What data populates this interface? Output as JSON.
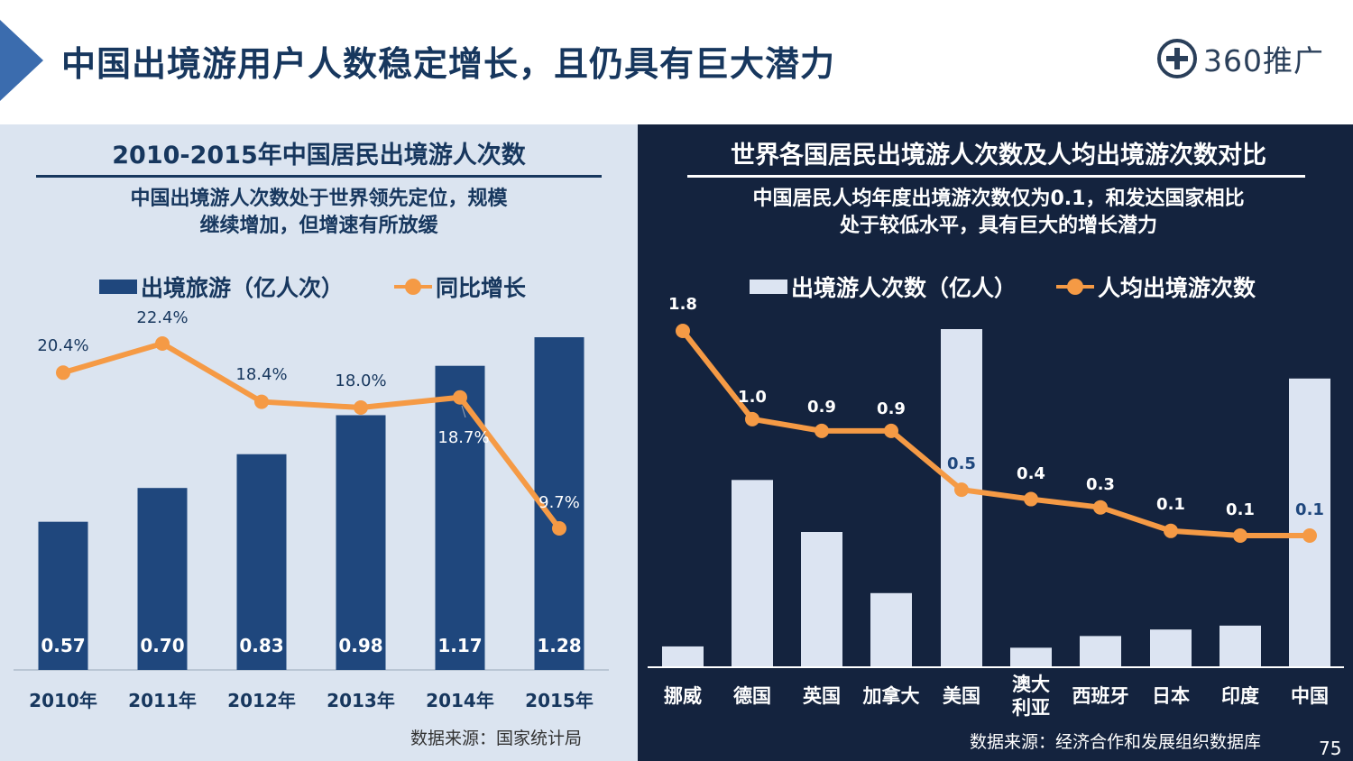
{
  "header": {
    "title": "中国出境游用户人数稳定增长，且仍具有巨大潜力",
    "logo_text": "360推广",
    "page_number": "75"
  },
  "colors": {
    "bar_dark": "#1f477d",
    "bar_light": "#dce4f2",
    "line_orange": "#f59a45",
    "title_blue": "#17375e"
  },
  "left_panel": {
    "title": "2010-2015年中国居民出境游人次数",
    "subtitle_line1": "中国出境游人次数处于世界领先定位，规模",
    "subtitle_line2": "继续增加，但增速有所放缓",
    "legend_bar": "出境旅游（亿人次）",
    "legend_line": "同比增长",
    "source": "数据来源：国家统计局"
  },
  "right_panel": {
    "title": "世界各国居民出境游人次数及人均出境游次数对比",
    "subtitle_line1": "中国居民人均年度出境游次数仅为0.1，和发达国家相比",
    "subtitle_line2": "处于较低水平，具有巨大的增长潜力",
    "legend_bar": "出境游人次数（亿人）",
    "legend_line": "人均出境游次数",
    "source": "数据来源：经济合作和发展组织数据库"
  },
  "chart_data": [
    {
      "type": "bar",
      "title": "2010-2015年中国居民出境游人次数",
      "categories": [
        "2010年",
        "2011年",
        "2012年",
        "2013年",
        "2014年",
        "2015年"
      ],
      "series": [
        {
          "name": "出境旅游（亿人次）",
          "type": "bar",
          "values": [
            0.57,
            0.7,
            0.83,
            0.98,
            1.17,
            1.28
          ],
          "labels": [
            "0.57",
            "0.70",
            "0.83",
            "0.98",
            "1.17",
            "1.28"
          ]
        },
        {
          "name": "同比增长",
          "type": "line",
          "values": [
            20.4,
            22.4,
            18.4,
            18.0,
            18.7,
            9.7
          ],
          "labels": [
            "20.4%",
            "22.4%",
            "18.4%",
            "18.0%",
            "18.7%",
            "9.7%"
          ]
        }
      ],
      "bar_axis_range": [
        0,
        1.28
      ],
      "line_axis_range": [
        9.7,
        22.4
      ]
    },
    {
      "type": "bar",
      "title": "世界各国居民出境游人次数及人均出境游次数对比",
      "categories": [
        "挪威",
        "德国",
        "英国",
        "加拿大",
        "美国",
        "澳大利亚",
        "西班牙",
        "日本",
        "印度",
        "中国"
      ],
      "category_lines": [
        [
          "挪威"
        ],
        [
          "德国"
        ],
        [
          "英国"
        ],
        [
          "加拿大"
        ],
        [
          "美国"
        ],
        [
          "澳大",
          "利亚"
        ],
        [
          "西班牙"
        ],
        [
          "日本"
        ],
        [
          "印度"
        ],
        [
          "中国"
        ]
      ],
      "series": [
        {
          "name": "出境游人次数（亿人）",
          "type": "bar",
          "values": [
            0.08,
            0.72,
            0.52,
            0.285,
            1.3,
            0.075,
            0.12,
            0.145,
            0.16,
            1.11
          ]
        },
        {
          "name": "人均出境游次数",
          "type": "line",
          "values": [
            1.8,
            1.0,
            0.9,
            0.9,
            0.5,
            0.4,
            0.3,
            0.1,
            0.1,
            0.1
          ],
          "labels": [
            "1.8",
            "1.0",
            "0.9",
            "0.9",
            "0.5",
            "0.4",
            "0.3",
            "0.1",
            "0.1",
            "0.1"
          ],
          "plotted_level": [
            1.8,
            1.05,
            0.95,
            0.95,
            0.45,
            0.37,
            0.3,
            0.1,
            0.06,
            0.06
          ]
        }
      ],
      "bar_axis_range": [
        0,
        1.3
      ],
      "line_axis_range": [
        0.06,
        1.8
      ]
    }
  ]
}
